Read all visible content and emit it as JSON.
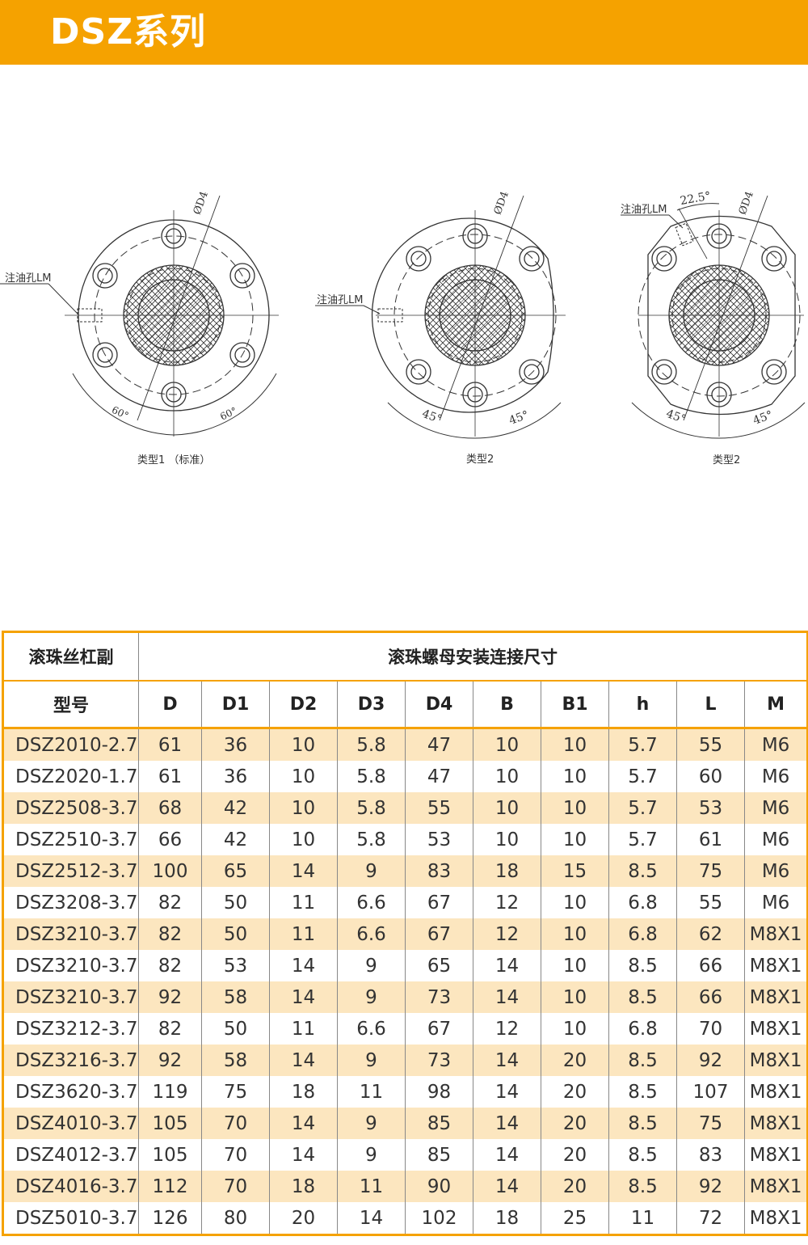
{
  "header": {
    "title": "DSZ系列"
  },
  "drawings": {
    "type1": {
      "caption": "类型1 （标准）",
      "diameter_label": "ØD4",
      "oil_hole_label": "注油孔LM",
      "angle_left": "60°",
      "angle_right": "60°"
    },
    "type2": {
      "caption": "类型2",
      "diameter_label": "ØD4",
      "oil_hole_label": "注油孔LM",
      "angle_left": "45°",
      "angle_right": "45°"
    },
    "type3": {
      "caption": "类型2",
      "diameter_label": "ØD4",
      "oil_hole_label": "注油孔LM",
      "angle_top": "22.5°",
      "angle_left": "45°",
      "angle_right": "45°"
    }
  },
  "table": {
    "group_header_left": "滚珠丝杠副",
    "group_header_right": "滚珠螺母安装连接尺寸",
    "columns": [
      "型号",
      "D",
      "D1",
      "D2",
      "D3",
      "D4",
      "B",
      "B1",
      "h",
      "L",
      "M"
    ],
    "rows": [
      [
        "DSZ2010-2.7",
        "61",
        "36",
        "10",
        "5.8",
        "47",
        "10",
        "10",
        "5.7",
        "55",
        "M6"
      ],
      [
        "DSZ2020-1.7",
        "61",
        "36",
        "10",
        "5.8",
        "47",
        "10",
        "10",
        "5.7",
        "60",
        "M6"
      ],
      [
        "DSZ2508-3.7",
        "68",
        "42",
        "10",
        "5.8",
        "55",
        "10",
        "10",
        "5.7",
        "53",
        "M6"
      ],
      [
        "DSZ2510-3.7",
        "66",
        "42",
        "10",
        "5.8",
        "53",
        "10",
        "10",
        "5.7",
        "61",
        "M6"
      ],
      [
        "DSZ2512-3.7",
        "100",
        "65",
        "14",
        "9",
        "83",
        "18",
        "15",
        "8.5",
        "75",
        "M6"
      ],
      [
        "DSZ3208-3.7",
        "82",
        "50",
        "11",
        "6.6",
        "67",
        "12",
        "10",
        "6.8",
        "55",
        "M6"
      ],
      [
        "DSZ3210-3.7",
        "82",
        "50",
        "11",
        "6.6",
        "67",
        "12",
        "10",
        "6.8",
        "62",
        "M8X1"
      ],
      [
        "DSZ3210-3.7",
        "82",
        "53",
        "14",
        "9",
        "65",
        "14",
        "10",
        "8.5",
        "66",
        "M8X1"
      ],
      [
        "DSZ3210-3.7",
        "92",
        "58",
        "14",
        "9",
        "73",
        "14",
        "10",
        "8.5",
        "66",
        "M8X1"
      ],
      [
        "DSZ3212-3.7",
        "82",
        "50",
        "11",
        "6.6",
        "67",
        "12",
        "10",
        "6.8",
        "70",
        "M8X1"
      ],
      [
        "DSZ3216-3.7",
        "92",
        "58",
        "14",
        "9",
        "73",
        "14",
        "20",
        "8.5",
        "92",
        "M8X1"
      ],
      [
        "DSZ3620-3.7",
        "119",
        "75",
        "18",
        "11",
        "98",
        "14",
        "20",
        "8.5",
        "107",
        "M8X1"
      ],
      [
        "DSZ4010-3.7",
        "105",
        "70",
        "14",
        "9",
        "85",
        "14",
        "20",
        "8.5",
        "75",
        "M8X1"
      ],
      [
        "DSZ4012-3.7",
        "105",
        "70",
        "14",
        "9",
        "85",
        "14",
        "20",
        "8.5",
        "83",
        "M8X1"
      ],
      [
        "DSZ4016-3.7",
        "112",
        "70",
        "18",
        "11",
        "90",
        "14",
        "20",
        "8.5",
        "92",
        "M8X1"
      ],
      [
        "DSZ5010-3.7",
        "126",
        "80",
        "20",
        "14",
        "102",
        "18",
        "25",
        "11",
        "72",
        "M8X1"
      ]
    ]
  }
}
